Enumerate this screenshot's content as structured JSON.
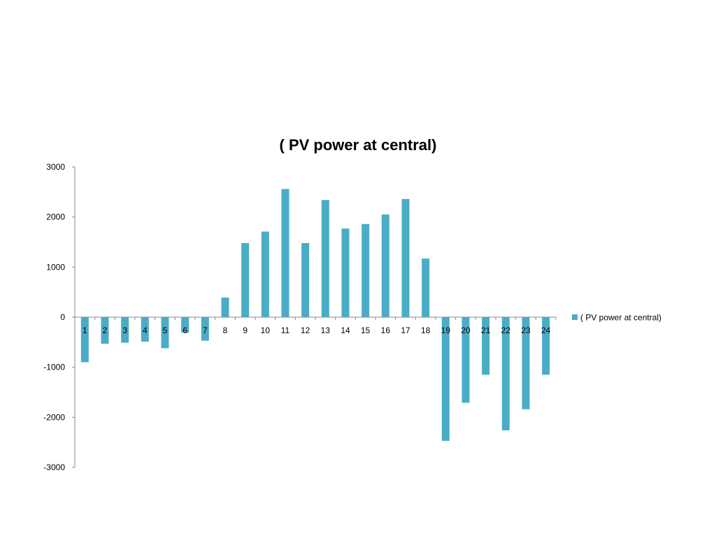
{
  "chart_data": {
    "type": "bar",
    "title": "( PV power  at central)",
    "xlabel": "",
    "ylabel": "",
    "categories": [
      "1",
      "2",
      "3",
      "4",
      "5",
      "6",
      "7",
      "8",
      "9",
      "10",
      "11",
      "12",
      "13",
      "14",
      "15",
      "16",
      "17",
      "18",
      "19",
      "20",
      "21",
      "22",
      "23",
      "24"
    ],
    "series": [
      {
        "name": "( PV power  at central)",
        "color": "#4BACC6",
        "values": [
          -900,
          -530,
          -510,
          -490,
          -620,
          -310,
          -470,
          390,
          1480,
          1710,
          2560,
          1480,
          2340,
          1770,
          1860,
          2050,
          2360,
          1170,
          -2470,
          -1710,
          -1150,
          -2260,
          -1840,
          -1150
        ]
      }
    ],
    "ylim": [
      -3000,
      3000
    ],
    "yticks": [
      3000,
      2000,
      1000,
      0,
      -1000,
      -2000,
      -3000
    ],
    "grid": false,
    "legend": "right"
  }
}
